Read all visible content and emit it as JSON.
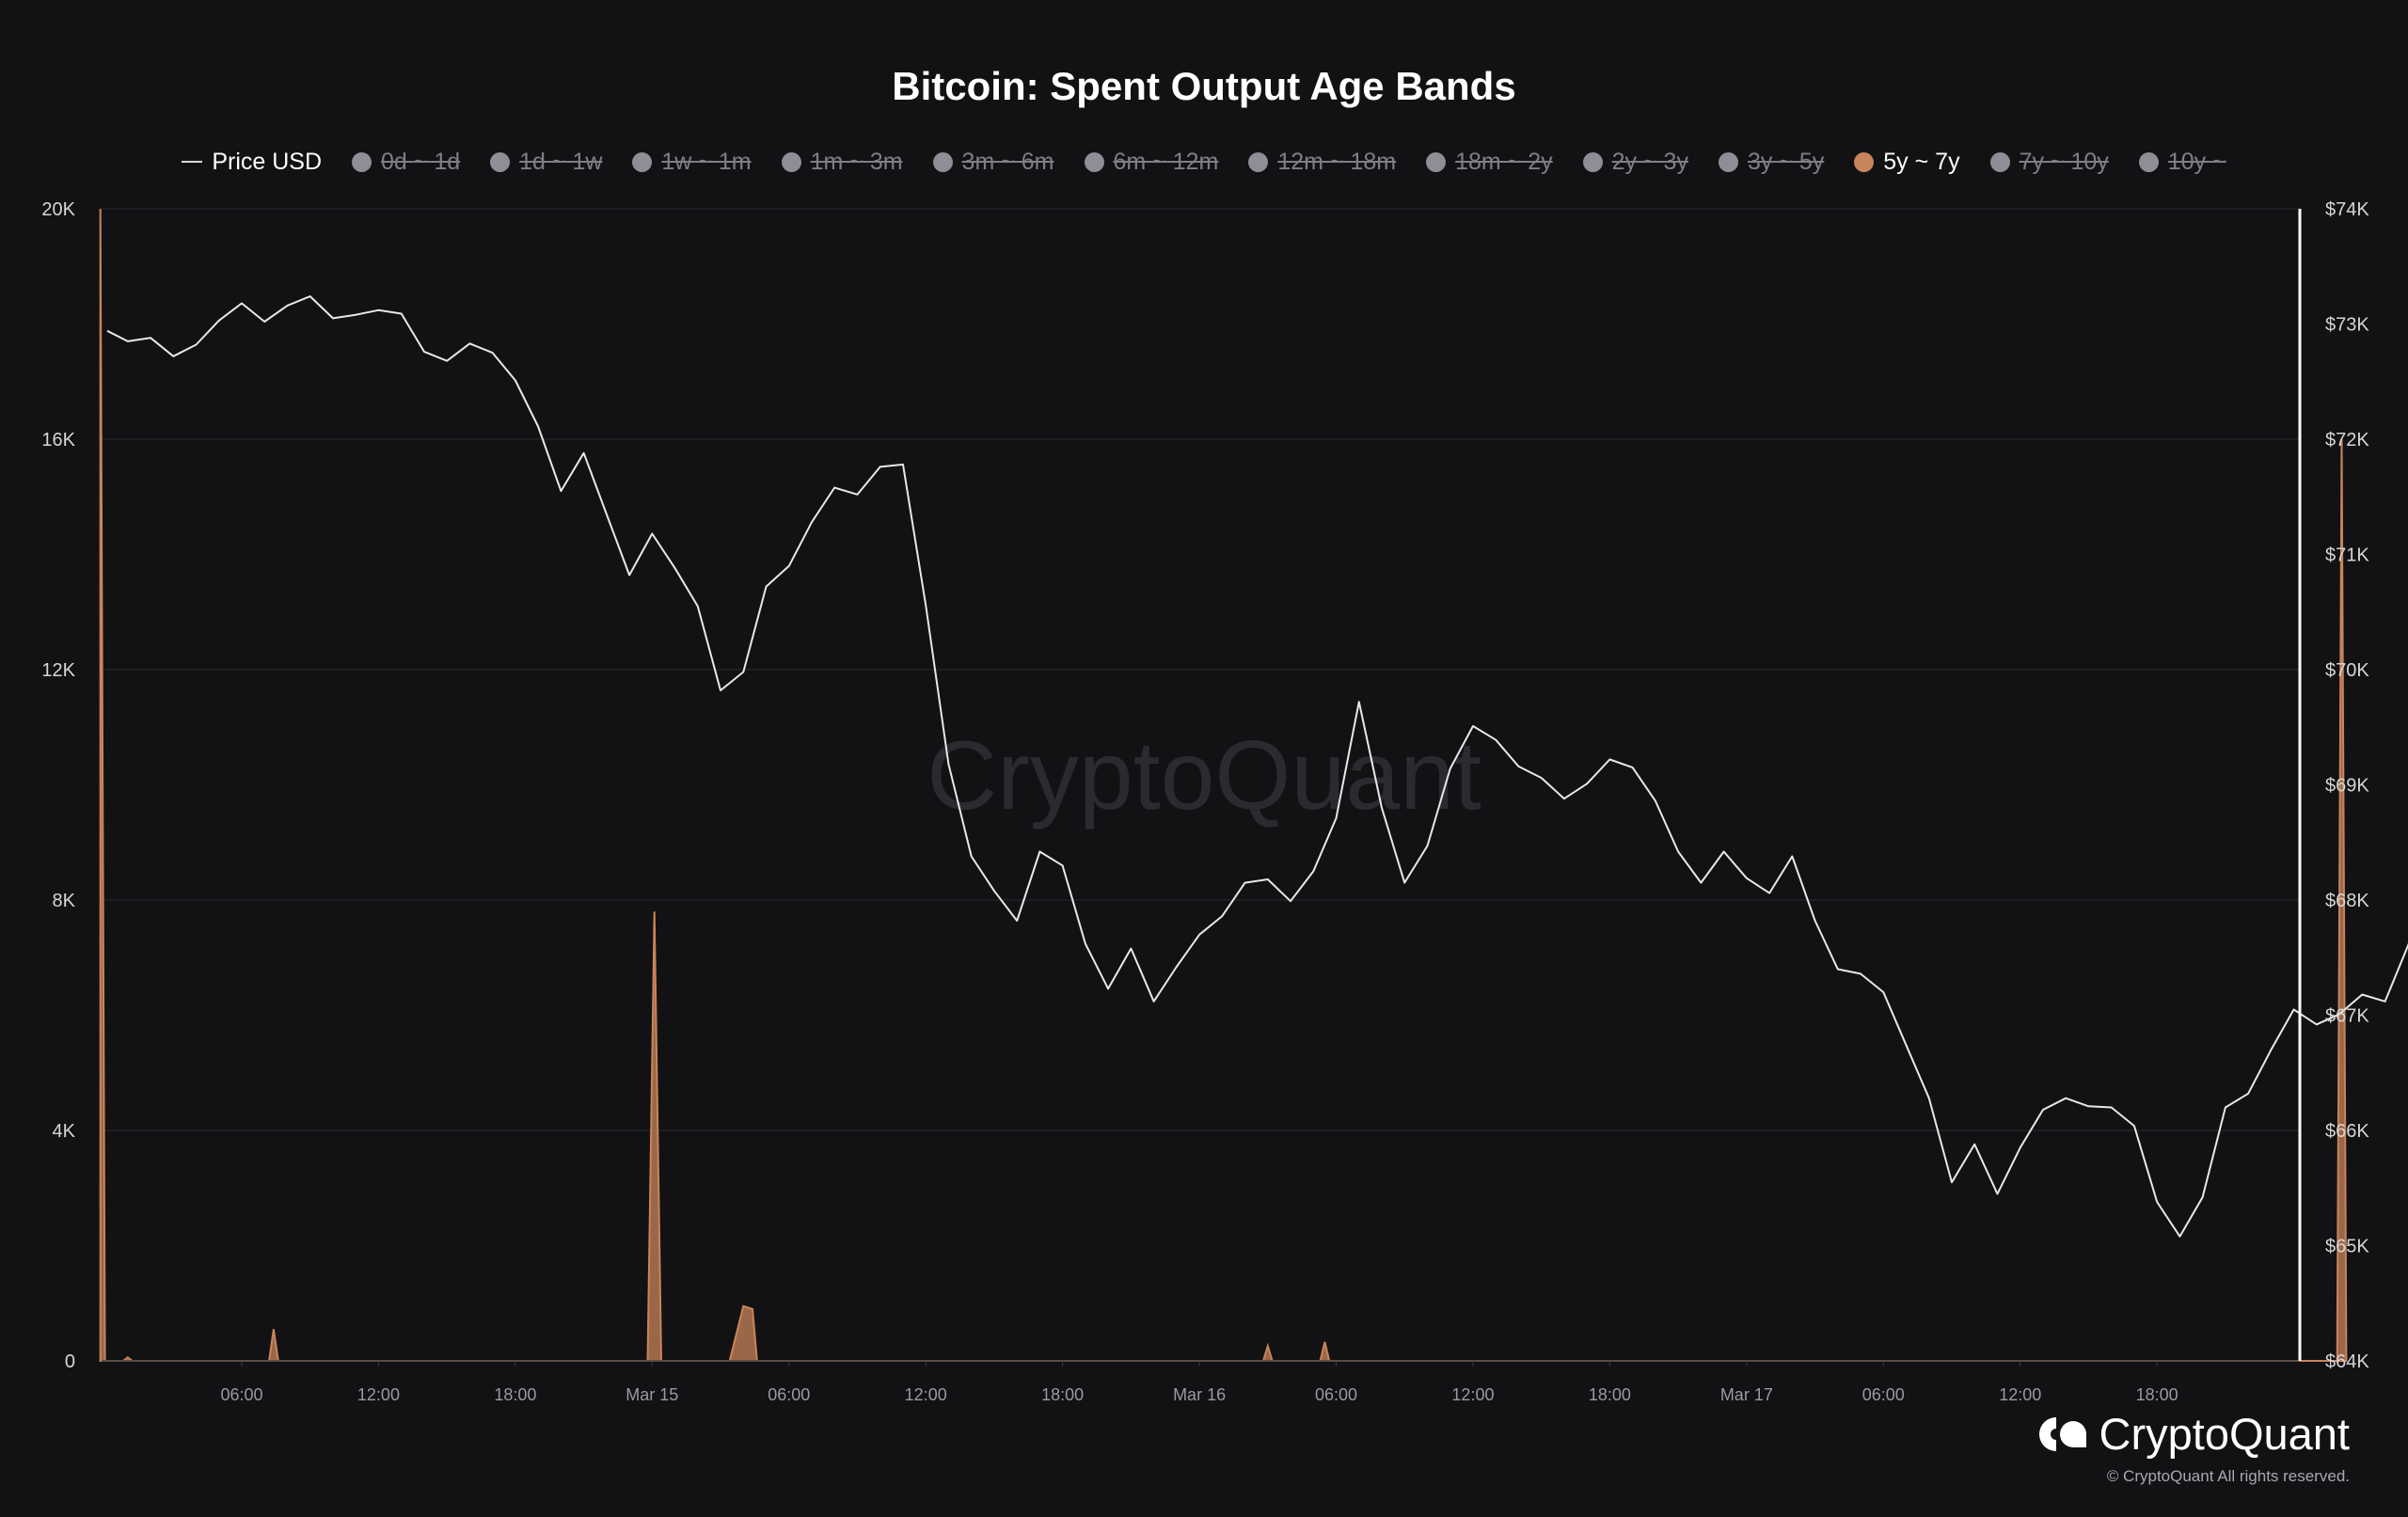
{
  "chart_data": {
    "type": "line",
    "title": "Bitcoin: Spent Output Age Bands",
    "watermark": "CryptoQuant",
    "legend_placement": "top-center",
    "legend": [
      {
        "label": "Price USD",
        "marker": "line",
        "color": "#d8d8d8",
        "enabled": true
      },
      {
        "label": "0d ~ 1d",
        "marker": "dot",
        "enabled": false
      },
      {
        "label": "1d ~ 1w",
        "marker": "dot",
        "enabled": false
      },
      {
        "label": "1w ~ 1m",
        "marker": "dot",
        "enabled": false
      },
      {
        "label": "1m ~ 3m",
        "marker": "dot",
        "enabled": false
      },
      {
        "label": "3m ~ 6m",
        "marker": "dot",
        "enabled": false
      },
      {
        "label": "6m ~ 12m",
        "marker": "dot",
        "enabled": false
      },
      {
        "label": "12m ~ 18m",
        "marker": "dot",
        "enabled": false
      },
      {
        "label": "18m ~ 2y",
        "marker": "dot",
        "enabled": false
      },
      {
        "label": "2y ~ 3y",
        "marker": "dot",
        "enabled": false
      },
      {
        "label": "3y ~ 5y",
        "marker": "dot",
        "enabled": false
      },
      {
        "label": "5y ~ 7y",
        "marker": "dot",
        "color": "#c8845a",
        "enabled": true
      },
      {
        "label": "7y ~ 10y",
        "marker": "dot",
        "enabled": false
      },
      {
        "label": "10y ~",
        "marker": "dot",
        "enabled": false
      }
    ],
    "x_ticks": [
      "06:00",
      "12:00",
      "18:00",
      "Mar 15",
      "06:00",
      "12:00",
      "18:00",
      "Mar 16",
      "06:00",
      "12:00",
      "18:00",
      "Mar 17",
      "06:00",
      "12:00",
      "18:00"
    ],
    "y_left_ticks": [
      "0",
      "4K",
      "8K",
      "12K",
      "16K",
      "20K"
    ],
    "y_left_range": [
      0,
      20000
    ],
    "y_right_ticks": [
      "$64K",
      "$65K",
      "$66K",
      "$67K",
      "$68K",
      "$69K",
      "$70K",
      "$71K",
      "$72K",
      "$73K",
      "$74K"
    ],
    "y_right_range": [
      64000,
      74000
    ],
    "grid": true,
    "x_hours": "hours since first tick (06:00, Mar 14)",
    "series": [
      {
        "name": "Price USD",
        "axis": "right",
        "color": "#e8e8e8",
        "points": [
          [
            -5.9,
            72940
          ],
          [
            -5.0,
            72850
          ],
          [
            -4.0,
            72880
          ],
          [
            -3.0,
            72720
          ],
          [
            -2.0,
            72820
          ],
          [
            -1.0,
            73030
          ],
          [
            0.0,
            73180
          ],
          [
            1.0,
            73020
          ],
          [
            2.0,
            73160
          ],
          [
            3.0,
            73240
          ],
          [
            4.0,
            73050
          ],
          [
            5.0,
            73080
          ],
          [
            6.0,
            73120
          ],
          [
            7.0,
            73090
          ],
          [
            8.0,
            72760
          ],
          [
            9.0,
            72680
          ],
          [
            10.0,
            72830
          ],
          [
            11.0,
            72750
          ],
          [
            12.0,
            72510
          ],
          [
            13.0,
            72110
          ],
          [
            14.0,
            71550
          ],
          [
            15.0,
            71880
          ],
          [
            16.0,
            71350
          ],
          [
            17.0,
            70820
          ],
          [
            18.0,
            71180
          ],
          [
            19.0,
            70880
          ],
          [
            20.0,
            70550
          ],
          [
            21.0,
            69820
          ],
          [
            22.0,
            69980
          ],
          [
            23.0,
            70720
          ],
          [
            24.0,
            70900
          ],
          [
            25.0,
            71280
          ],
          [
            26.0,
            71580
          ],
          [
            27.0,
            71520
          ],
          [
            28.0,
            71760
          ],
          [
            29.0,
            71780
          ],
          [
            30.0,
            70560
          ],
          [
            31.0,
            69180
          ],
          [
            32.0,
            68380
          ],
          [
            33.0,
            68080
          ],
          [
            34.0,
            67820
          ],
          [
            35.0,
            68420
          ],
          [
            36.0,
            68300
          ],
          [
            37.0,
            67620
          ],
          [
            38.0,
            67230
          ],
          [
            39.0,
            67580
          ],
          [
            40.0,
            67120
          ],
          [
            41.0,
            67420
          ],
          [
            42.0,
            67700
          ],
          [
            43.0,
            67860
          ],
          [
            44.0,
            68150
          ],
          [
            45.0,
            68180
          ],
          [
            46.0,
            67990
          ],
          [
            47.0,
            68250
          ],
          [
            48.0,
            68710
          ],
          [
            49.0,
            69720
          ],
          [
            50.0,
            68800
          ],
          [
            51.0,
            68150
          ],
          [
            52.0,
            68470
          ],
          [
            53.0,
            69140
          ],
          [
            54.0,
            69510
          ],
          [
            55.0,
            69390
          ],
          [
            56.0,
            69160
          ],
          [
            57.0,
            69060
          ],
          [
            58.0,
            68880
          ],
          [
            59.0,
            69010
          ],
          [
            60.0,
            69220
          ],
          [
            61.0,
            69150
          ],
          [
            62.0,
            68860
          ],
          [
            63.0,
            68420
          ],
          [
            64.0,
            68150
          ],
          [
            65.0,
            68420
          ],
          [
            66.0,
            68190
          ],
          [
            67.0,
            68060
          ],
          [
            68.0,
            68380
          ],
          [
            69.0,
            67820
          ],
          [
            70.0,
            67400
          ],
          [
            71.0,
            67360
          ],
          [
            72.0,
            67200
          ],
          [
            73.0,
            66740
          ],
          [
            74.0,
            66280
          ],
          [
            75.0,
            65550
          ],
          [
            76.0,
            65880
          ],
          [
            77.0,
            65450
          ],
          [
            78.0,
            65850
          ],
          [
            79.0,
            66180
          ],
          [
            80.0,
            66280
          ],
          [
            81.0,
            66210
          ],
          [
            82.0,
            66200
          ],
          [
            83.0,
            66040
          ],
          [
            84.0,
            65380
          ],
          [
            85.0,
            65080
          ],
          [
            86.0,
            65420
          ],
          [
            87.0,
            66200
          ],
          [
            88.0,
            66320
          ],
          [
            89.0,
            66700
          ],
          [
            90.0,
            67050
          ],
          [
            91.0,
            66920
          ],
          [
            92.0,
            67010
          ],
          [
            93.0,
            67180
          ],
          [
            94.0,
            67120
          ],
          [
            95.0,
            67600
          ],
          [
            96.0,
            68110
          ],
          [
            97.0,
            68070
          ],
          [
            98.0,
            68380
          ],
          [
            99.0,
            68210
          ],
          [
            99.6,
            68170
          ]
        ]
      },
      {
        "name": "5y ~ 7y",
        "axis": "left",
        "color": "#c8845a",
        "type": "area",
        "points": [
          [
            -6.2,
            20000
          ],
          [
            -6.0,
            0
          ],
          [
            -5.2,
            0
          ],
          [
            -5.0,
            60
          ],
          [
            -4.8,
            0
          ],
          [
            1.2,
            0
          ],
          [
            1.4,
            550
          ],
          [
            1.6,
            0
          ],
          [
            17.8,
            0
          ],
          [
            18.1,
            7800
          ],
          [
            18.4,
            0
          ],
          [
            21.4,
            0
          ],
          [
            22.0,
            950
          ],
          [
            22.4,
            900
          ],
          [
            22.6,
            0
          ],
          [
            44.8,
            0
          ],
          [
            45.0,
            260
          ],
          [
            45.2,
            0
          ],
          [
            47.3,
            0
          ],
          [
            47.5,
            330
          ],
          [
            47.7,
            0
          ],
          [
            91.9,
            0
          ],
          [
            92.1,
            16000
          ],
          [
            92.3,
            0
          ]
        ]
      }
    ]
  },
  "brand": {
    "name": "CryptoQuant",
    "copyright": "© CryptoQuant All rights reserved."
  }
}
